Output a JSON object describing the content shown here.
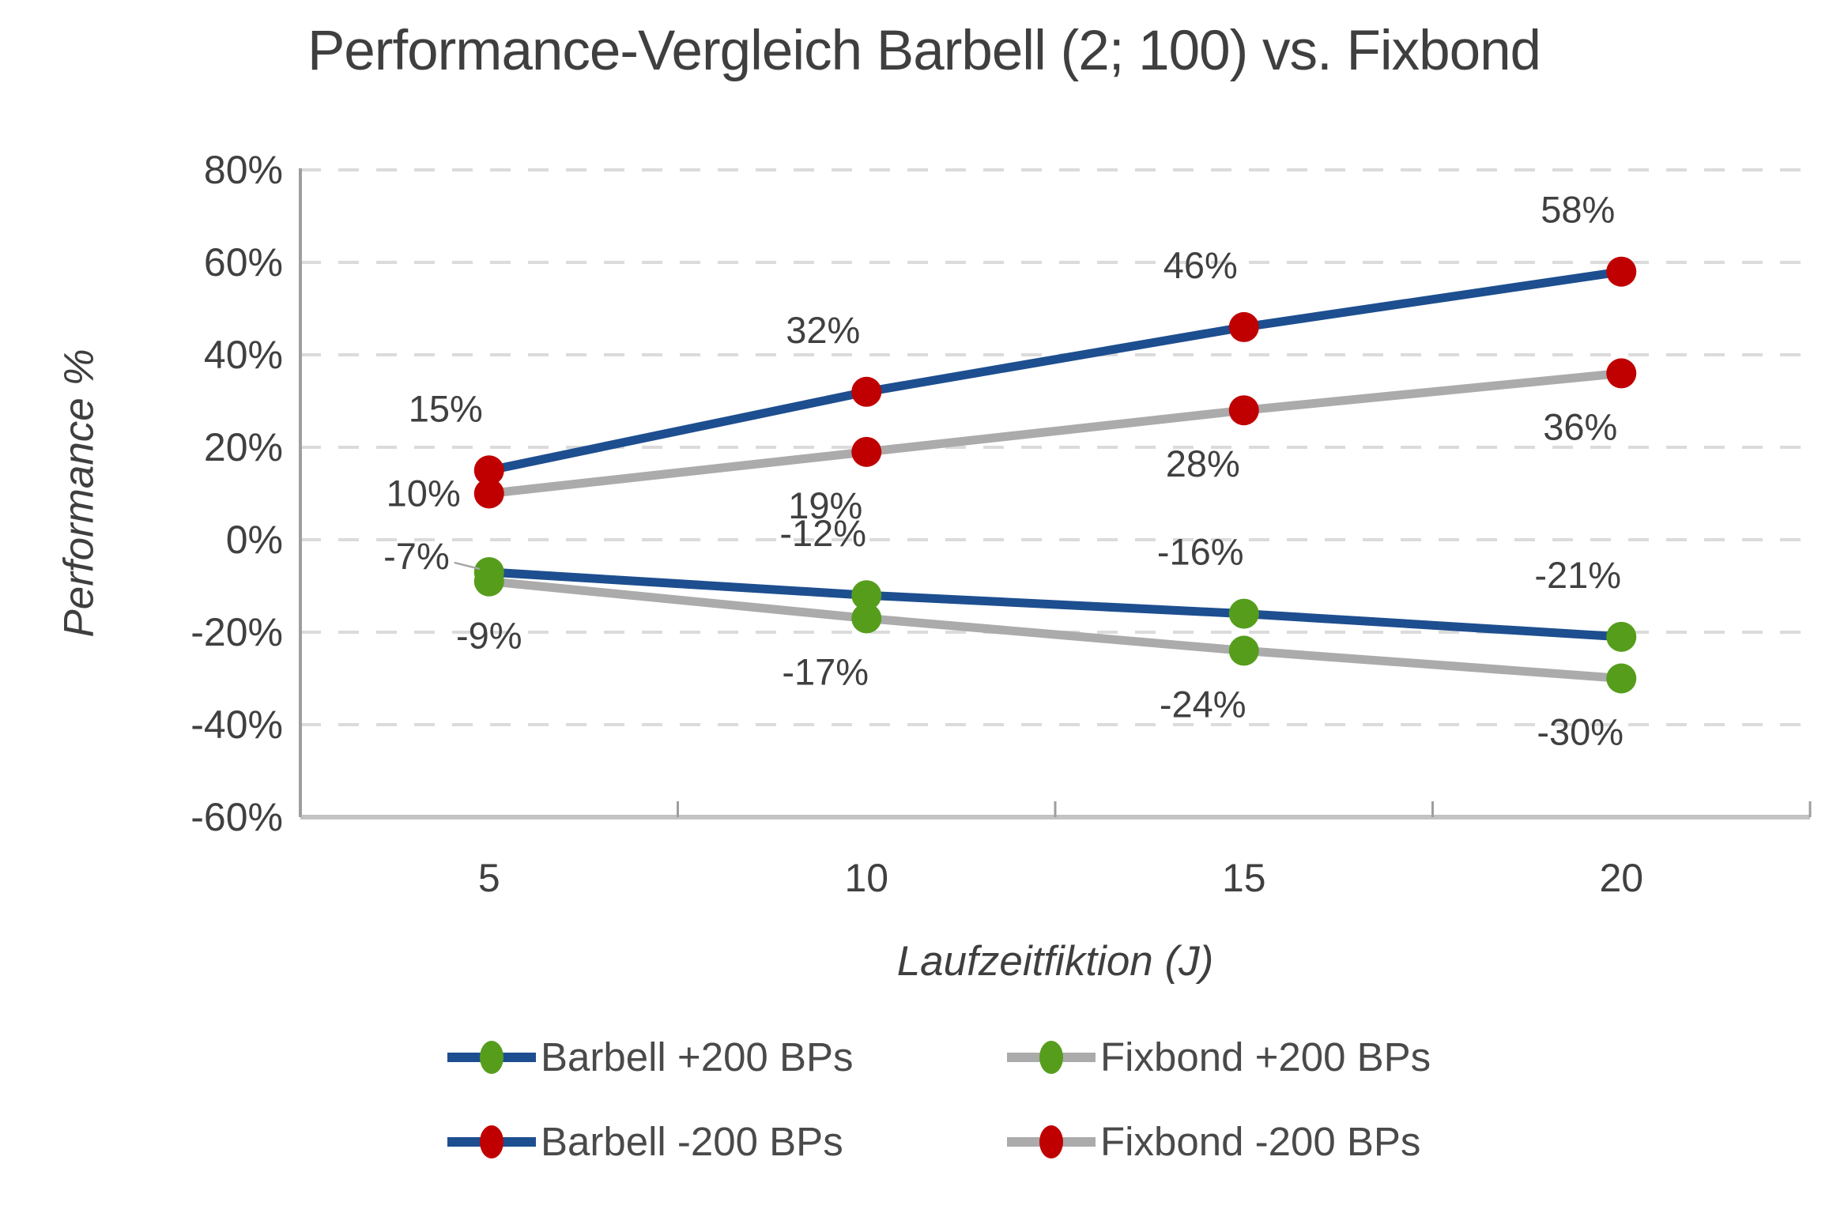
{
  "chart_data": {
    "type": "line",
    "title": "Performance-Vergleich Barbell (2; 100) vs. Fixbond",
    "xlabel": "Laufzeitfiktion (J)",
    "ylabel": "Performance %",
    "categories": [
      5,
      10,
      15,
      20
    ],
    "x_tick_labels": [
      "5",
      "10",
      "15",
      "20"
    ],
    "ylim": [
      -60,
      80
    ],
    "y_tick_step": 20,
    "y_tick_labels": [
      "80%",
      "60%",
      "40%",
      "20%",
      "0%",
      "-20%",
      "-40%",
      "-60%"
    ],
    "grid": "horizontal-dashed",
    "legend_position": "bottom",
    "series": [
      {
        "name": "Barbell +200 BPs",
        "family": "barbell",
        "line_color": "#1D4E8F",
        "marker_color": "#569D1C",
        "values": [
          -7,
          -12,
          -16,
          -21
        ],
        "data_labels": [
          "-7%",
          "-12%",
          "-16%",
          "-21%"
        ],
        "label_pos": [
          "left-leader",
          "above",
          "above",
          "above"
        ]
      },
      {
        "name": "Fixbond +200 BPs",
        "family": "fixbond",
        "line_color": "#ABABAB",
        "marker_color": "#569D1C",
        "values": [
          -9,
          -17,
          -24,
          -30
        ],
        "data_labels": [
          "-9%",
          "-17%",
          "-24%",
          "-30%"
        ],
        "label_pos": [
          "below-center",
          "below",
          "below",
          "below"
        ]
      },
      {
        "name": "Barbell -200 BPs",
        "family": "barbell",
        "line_color": "#1D4E8F",
        "marker_color": "#C00000",
        "values": [
          15,
          32,
          46,
          58
        ],
        "data_labels": [
          "15%",
          "32%",
          "46%",
          "58%"
        ],
        "label_pos": [
          "above",
          "above",
          "above",
          "above"
        ]
      },
      {
        "name": "Fixbond -200 BPs",
        "family": "fixbond",
        "line_color": "#ABABAB",
        "marker_color": "#C00000",
        "values": [
          10,
          19,
          28,
          36
        ],
        "data_labels": [
          "10%",
          "19%",
          "28%",
          "36%"
        ],
        "label_pos": [
          "left",
          "below",
          "below",
          "below"
        ]
      }
    ],
    "colors": {
      "text": "#3F3F3F",
      "tick_text": "#404040",
      "gridline": "#DBDBDB",
      "axis_line": "#9E9E9E",
      "bottom_axis_line": "#C3C3C3",
      "leader_line": "#A6A6A6"
    }
  }
}
